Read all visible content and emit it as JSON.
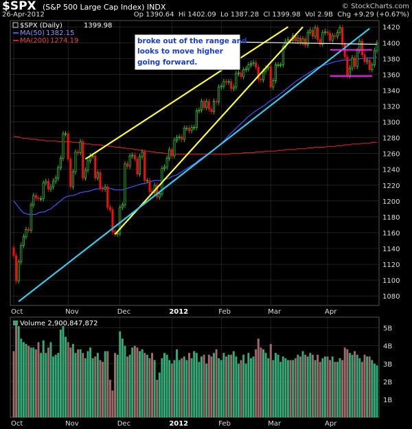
{
  "header": {
    "ticker": "$SPX",
    "description": "(S&P 500 Large Cap Index) INDX",
    "date": "26-Apr-2012",
    "quote": "Op 1390.64  Hi 1402.09  Lo 1387.28  Cl 1399.98  Vol 2.9B  Chg +9.29 (+0.67%)",
    "watermark": "© StockCharts.com"
  },
  "annotation": {
    "lines": [
      "broke out of the range and",
      "looks to move higher",
      "going forward."
    ]
  },
  "colors": {
    "background": "#000000",
    "grid": "#333333",
    "up": "#33cc33",
    "down": "#ee1111",
    "ma50": "#4455ff",
    "ma200": "#cc2222",
    "yellow_trend": "#ffff33",
    "cyan_trend": "#33ccee",
    "range": "#ff22ff",
    "vol_up": "#33aa77",
    "vol_down": "#a06a6a"
  },
  "chart_data": [
    {
      "type": "candlestick",
      "title": "$SPX (Daily) 1399.98",
      "legend": [
        {
          "name": "$SPX (Daily)",
          "value": "1399.98"
        },
        {
          "name": "MA(50)",
          "value": "1382.15"
        },
        {
          "name": "MA(200)",
          "value": "1274.19"
        }
      ],
      "x_tick_labels": [
        "Oct",
        "Nov",
        "Dec",
        "2012",
        "Feb",
        "Mar",
        "Apr"
      ],
      "x_tick_days": [
        0,
        22,
        43,
        64,
        84,
        104,
        127
      ],
      "y_ticks": [
        1080,
        1100,
        1120,
        1140,
        1160,
        1180,
        1200,
        1220,
        1240,
        1260,
        1280,
        1300,
        1320,
        1340,
        1360,
        1380,
        1400,
        1420
      ],
      "ylim": [
        1068,
        1428
      ],
      "close": [
        1131,
        1099,
        1123,
        1144,
        1155,
        1164,
        1163,
        1195,
        1207,
        1204,
        1203,
        1203,
        1223,
        1225,
        1215,
        1218,
        1225,
        1229,
        1242,
        1254,
        1285,
        1285,
        1253,
        1218,
        1237,
        1262,
        1261,
        1275,
        1229,
        1239,
        1251,
        1257,
        1257,
        1229,
        1236,
        1216,
        1215,
        1218,
        1192,
        1189,
        1161,
        1158,
        1159,
        1192,
        1195,
        1247,
        1244,
        1257,
        1258,
        1253,
        1234,
        1256,
        1262,
        1226,
        1226,
        1212,
        1211,
        1220,
        1205,
        1209,
        1241,
        1243,
        1254,
        1265,
        1257,
        1277,
        1280,
        1281,
        1278,
        1292,
        1292,
        1289,
        1293,
        1293,
        1314,
        1315,
        1326,
        1318,
        1326,
        1316,
        1313,
        1326,
        1325,
        1344,
        1345,
        1351,
        1350,
        1351,
        1342,
        1344,
        1361,
        1362,
        1357,
        1366,
        1367,
        1372,
        1374,
        1375,
        1369,
        1354,
        1353,
        1364,
        1368,
        1370,
        1344,
        1352,
        1372,
        1372,
        1372,
        1395,
        1402,
        1404,
        1403,
        1409,
        1402,
        1406,
        1400,
        1405,
        1397,
        1413,
        1416,
        1408,
        1419,
        1404,
        1398,
        1413,
        1414,
        1412,
        1403,
        1409,
        1408,
        1413,
        1419,
        1398,
        1382,
        1358,
        1368,
        1381,
        1370,
        1390,
        1402,
        1385,
        1376,
        1378,
        1366,
        1372,
        1390,
        1400
      ],
      "ma50": [
        1200,
        1196,
        1192,
        1188,
        1185,
        1184,
        1183,
        1183,
        1183,
        1183,
        1185,
        1186,
        1186,
        1187,
        1189,
        1190,
        1193,
        1195,
        1198,
        1200,
        1203,
        1205,
        1206,
        1207,
        1207,
        1208,
        1209,
        1211,
        1211,
        1212,
        1212,
        1213,
        1214,
        1215,
        1215,
        1216,
        1216,
        1217,
        1217,
        1216,
        1215,
        1214,
        1214,
        1214,
        1214,
        1215,
        1216,
        1217,
        1218,
        1219,
        1220,
        1221,
        1222,
        1222,
        1223,
        1224,
        1225,
        1226,
        1226,
        1226,
        1226,
        1227,
        1228,
        1229,
        1231,
        1232,
        1233,
        1235,
        1237,
        1239,
        1241,
        1243,
        1245,
        1247,
        1249,
        1252,
        1254,
        1256,
        1258,
        1260,
        1262,
        1265,
        1267,
        1270,
        1273,
        1276,
        1279,
        1283,
        1286,
        1289,
        1292,
        1295,
        1298,
        1301,
        1304,
        1307,
        1309,
        1312,
        1314,
        1316,
        1318,
        1320,
        1322,
        1325,
        1327,
        1329,
        1331,
        1333,
        1336,
        1338,
        1341,
        1343,
        1346,
        1348,
        1351,
        1353,
        1355,
        1357,
        1359,
        1361,
        1363,
        1365,
        1367,
        1369,
        1370,
        1371,
        1372,
        1373,
        1374,
        1375,
        1376,
        1377,
        1377,
        1378,
        1378,
        1378,
        1378,
        1379,
        1379,
        1379,
        1380,
        1380,
        1380,
        1381,
        1381,
        1381,
        1381,
        1382
      ],
      "ma200": [
        1282,
        1281,
        1281,
        1280,
        1279,
        1279,
        1279,
        1278,
        1278,
        1278,
        1277,
        1277,
        1277,
        1276,
        1276,
        1276,
        1276,
        1276,
        1275,
        1275,
        1275,
        1275,
        1275,
        1275,
        1274,
        1274,
        1274,
        1273,
        1273,
        1272,
        1272,
        1272,
        1271,
        1271,
        1271,
        1271,
        1270,
        1270,
        1270,
        1269,
        1269,
        1268,
        1268,
        1268,
        1267,
        1267,
        1266,
        1266,
        1266,
        1265,
        1265,
        1264,
        1264,
        1263,
        1263,
        1263,
        1262,
        1262,
        1261,
        1261,
        1261,
        1260,
        1260,
        1259,
        1259,
        1259,
        1259,
        1259,
        1259,
        1259,
        1259,
        1259,
        1259,
        1259,
        1259,
        1259,
        1259,
        1259,
        1259,
        1259,
        1259,
        1259,
        1259,
        1259,
        1259,
        1259,
        1259,
        1259,
        1260,
        1260,
        1260,
        1260,
        1260,
        1261,
        1261,
        1261,
        1261,
        1261,
        1262,
        1262,
        1262,
        1262,
        1263,
        1263,
        1263,
        1263,
        1263,
        1264,
        1264,
        1264,
        1265,
        1265,
        1265,
        1265,
        1265,
        1266,
        1266,
        1266,
        1266,
        1267,
        1267,
        1267,
        1268,
        1268,
        1268,
        1268,
        1268,
        1269,
        1269,
        1269,
        1269,
        1270,
        1270,
        1270,
        1271,
        1271,
        1271,
        1272,
        1272,
        1272,
        1272,
        1273,
        1273,
        1273,
        1273,
        1274,
        1274,
        1274
      ],
      "trendlines": [
        {
          "name": "upper-yellow",
          "color": "yellow_trend",
          "from": [
            29,
            1253
          ],
          "to": [
            111,
            1420
          ]
        },
        {
          "name": "lower-yellow",
          "color": "yellow_trend",
          "from": [
            41,
            1158
          ],
          "to": [
            117,
            1420
          ]
        },
        {
          "name": "cyan-trend",
          "color": "cyan_trend",
          "from": [
            2,
            1073
          ],
          "to": [
            144,
            1418
          ]
        },
        {
          "name": "range-top",
          "color": "range",
          "from": [
            128,
            1391
          ],
          "to": [
            145,
            1391
          ]
        },
        {
          "name": "range-bottom",
          "color": "range",
          "from": [
            128,
            1358
          ],
          "to": [
            145,
            1358
          ]
        },
        {
          "name": "annotation-pointer",
          "color": "annotation",
          "from": [
            89,
            1401
          ],
          "to": [
            147,
            1398
          ]
        }
      ]
    },
    {
      "type": "bar",
      "title": "Volume 2,900,847,872",
      "y_tick_labels": [
        "1B",
        "2B",
        "3B",
        "4B",
        "5B"
      ],
      "y_ticks": [
        1,
        2,
        3,
        4,
        5
      ],
      "ylim": [
        0,
        5.6
      ],
      "unit": "billions",
      "values": [
        3.7,
        5.3,
        5.1,
        4.4,
        4.2,
        4.1,
        4.0,
        3.9,
        3.9,
        3.8,
        4.2,
        3.6,
        4.3,
        3.6,
        3.9,
        4.2,
        3.4,
        3.5,
        3.6,
        4.9,
        5.1,
        4.5,
        4.2,
        3.9,
        4.1,
        3.6,
        3.8,
        3.8,
        3.6,
        3.3,
        3.7,
        3.9,
        3.3,
        3.4,
        3.6,
        3.2,
        3.1,
        3.7,
        3.7,
        2.1,
        1.5,
        3.6,
        3.5,
        4.8,
        4.4,
        4.0,
        3.4,
        3.5,
        3.9,
        4.0,
        3.9,
        3.7,
        3.8,
        3.6,
        3.5,
        3.3,
        3.6,
        3.2,
        2.1,
        2.5,
        3.3,
        3.6,
        3.5,
        3.2,
        3.0,
        3.2,
        3.8,
        3.2,
        3.3,
        3.4,
        3.2,
        3.6,
        3.3,
        3.7,
        3.6,
        3.1,
        3.4,
        3.5,
        3.0,
        3.5,
        3.4,
        3.6,
        3.8,
        3.3,
        3.2,
        3.6,
        3.4,
        3.5,
        3.5,
        3.7,
        3.4,
        3.0,
        3.2,
        3.5,
        3.0,
        3.6,
        3.3,
        3.4,
        3.8,
        4.4,
        3.9,
        3.8,
        3.6,
        3.3,
        4.1,
        3.2,
        3.6,
        3.5,
        3.1,
        3.4,
        3.3,
        3.2,
        3.2,
        3.2,
        3.3,
        3.5,
        3.4,
        3.7,
        3.5,
        3.4,
        3.6,
        3.5,
        3.2,
        3.5,
        3.1,
        3.3,
        3.4,
        3.4,
        3.2,
        3.4,
        3.1,
        3.1,
        3.3,
        3.2,
        3.9,
        3.8,
        3.6,
        3.5,
        3.7,
        3.5,
        3.3,
        3.1,
        3.5,
        3.4,
        3.4,
        3.2,
        3.0,
        2.9
      ]
    }
  ]
}
